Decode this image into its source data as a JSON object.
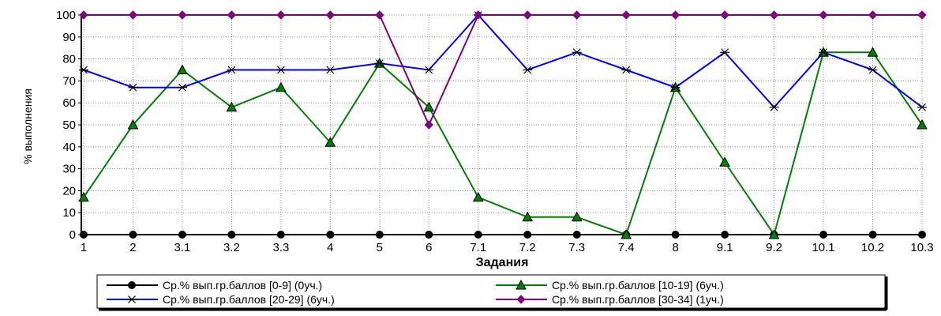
{
  "chart_data": {
    "type": "line",
    "title": "",
    "xlabel": "Задания",
    "ylabel": "% выполнения",
    "ylim": [
      0,
      100
    ],
    "yticks": [
      0,
      10,
      20,
      30,
      40,
      50,
      60,
      70,
      80,
      90,
      100
    ],
    "grid": true,
    "legend_position": "bottom",
    "categories": [
      "1",
      "2",
      "3.1",
      "3.2",
      "3.3",
      "4",
      "5",
      "6",
      "7.1",
      "7.2",
      "7.3",
      "7.4",
      "8",
      "9.1",
      "9.2",
      "10.1",
      "10.2",
      "10.3"
    ],
    "series": [
      {
        "name": "Ср.% вып.гр.баллов [0-9] (0уч.)",
        "color": "#000000",
        "marker": "circle",
        "values": [
          0,
          0,
          0,
          0,
          0,
          0,
          0,
          0,
          0,
          0,
          0,
          0,
          0,
          0,
          0,
          0,
          0,
          0
        ]
      },
      {
        "name": "Ср.% вып.гр.баллов [10-19] (6уч.)",
        "color": "#008000",
        "marker": "triangle",
        "values": [
          17,
          50,
          75,
          58,
          67,
          42,
          78,
          58,
          17,
          8,
          8,
          0,
          67,
          33,
          0,
          83,
          83,
          50
        ]
      },
      {
        "name": "Ср.% вып.гр.баллов [20-29] (6уч.)",
        "color": "#0000ff",
        "marker": "star",
        "values": [
          75,
          67,
          67,
          75,
          75,
          75,
          78,
          75,
          100,
          75,
          83,
          75,
          67,
          83,
          58,
          83,
          75,
          58
        ]
      },
      {
        "name": "Ср.% вып.гр.баллов [30-34] (1уч.)",
        "color": "#800080",
        "marker": "diamond",
        "values": [
          100,
          100,
          100,
          100,
          100,
          100,
          100,
          50,
          100,
          100,
          100,
          100,
          100,
          100,
          100,
          100,
          100,
          100
        ]
      }
    ]
  }
}
